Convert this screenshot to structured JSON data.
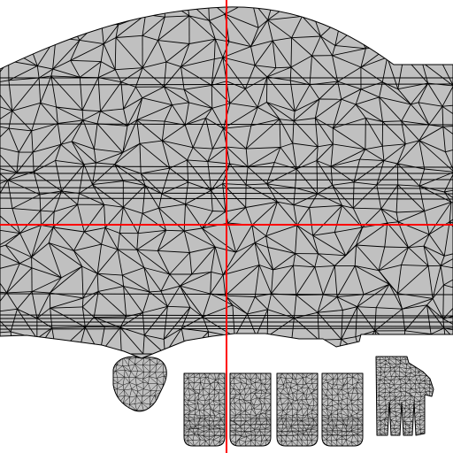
{
  "viewer": {
    "background_color": "#ffffff",
    "mesh_fill_color": "#c0c0c0",
    "wire_color": "#000000",
    "crosshair_color": "#ff0000",
    "shapes": [
      "body-mesh",
      "knuckle-mesh",
      "finger-mesh",
      "finger-mesh",
      "finger-mesh",
      "finger-mesh",
      "hand-mesh"
    ]
  }
}
